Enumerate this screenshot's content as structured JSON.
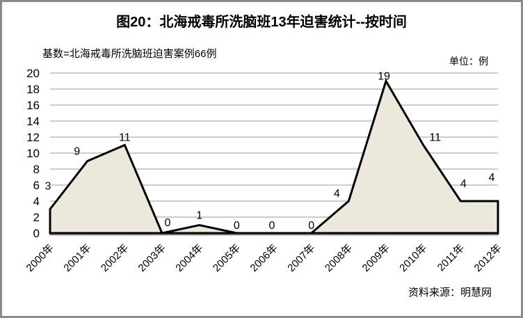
{
  "window": {
    "background": "#ffffff",
    "border_color": "#8a8a8a"
  },
  "chart_data": {
    "type": "area",
    "title": "图20：北海戒毒所洗脑班13年迫害统计--按时间",
    "base_note": "基数=北海戒毒所洗脑班迫害案例66例",
    "unit_label": "单位：例",
    "source_note": "资料来源：明慧网",
    "categories": [
      "2000年",
      "2001年",
      "2002年",
      "2003年",
      "2004年",
      "2005年",
      "2006年",
      "2007年",
      "2008年",
      "2009年",
      "2010年",
      "2011年",
      "2012年"
    ],
    "values": [
      3,
      9,
      11,
      0,
      1,
      0,
      0,
      0,
      4,
      19,
      11,
      4,
      4
    ],
    "xlabel": "",
    "ylabel": "",
    "ylim": [
      0,
      20
    ],
    "ytick_step": 2,
    "grid": true,
    "legend": "none",
    "colors": {
      "area_fill": "#ece9dc",
      "line": "#000000",
      "gridline": "#999999",
      "axis": "#808080",
      "text": "#000000"
    }
  }
}
